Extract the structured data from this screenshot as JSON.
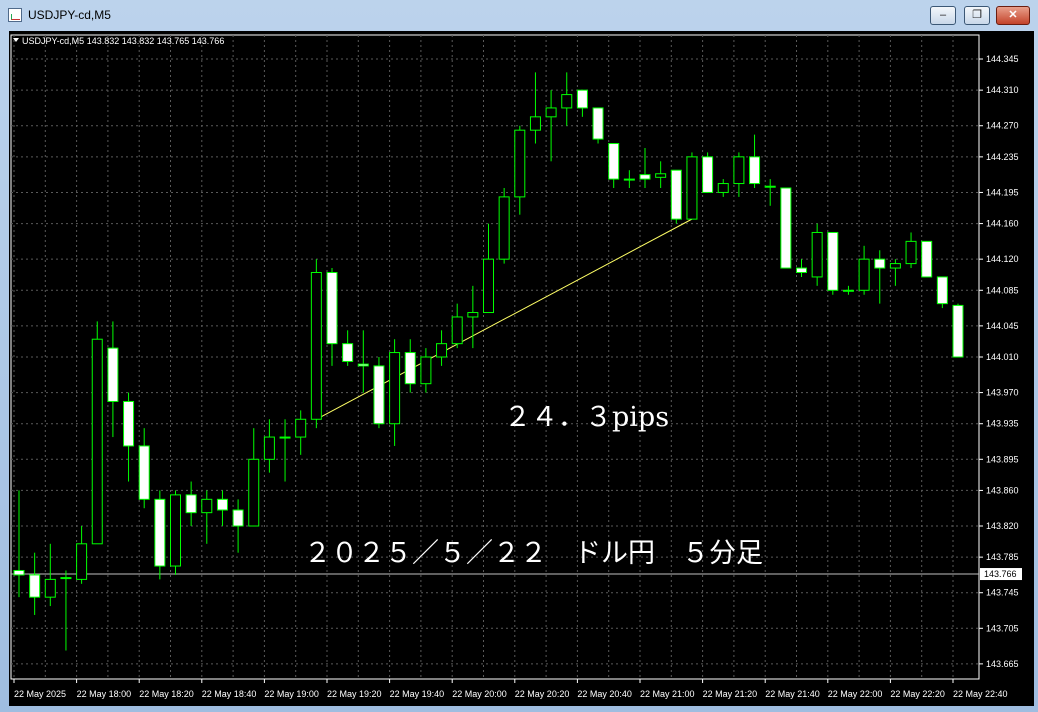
{
  "window": {
    "title": "USDJPY-cd,M5",
    "min_icon": "minimize-icon",
    "max_icon": "restore-icon",
    "close_icon": "close-icon"
  },
  "colors": {
    "background": "#000000",
    "grid": "#5a5a5a",
    "bull_body": "#000000",
    "bear_body": "#ffffff",
    "wick": "#00ff00",
    "text": "#ffffff",
    "trendline": "#ffff66",
    "price_line": "#c0c0c0"
  },
  "chart_data": {
    "type": "candlestick",
    "symbol_info": "USDJPY-cd,M5  143.832 143.832 143.765 143.766",
    "current_price": "143.766",
    "ylim": [
      143.648,
      144.372
    ],
    "grid": true,
    "y_ticks": [
      "144.345",
      "144.310",
      "144.270",
      "144.235",
      "144.195",
      "144.160",
      "144.120",
      "144.085",
      "144.045",
      "144.010",
      "143.970",
      "143.935",
      "143.895",
      "143.860",
      "143.820",
      "143.785",
      "143.745",
      "143.705",
      "143.665"
    ],
    "x_ticks": [
      "22 May 2025",
      "22 May 18:00",
      "22 May 18:20",
      "22 May 18:40",
      "22 May 19:00",
      "22 May 19:20",
      "22 May 19:40",
      "22 May 20:00",
      "22 May 20:20",
      "22 May 20:40",
      "22 May 21:00",
      "22 May 21:20",
      "22 May 21:40",
      "22 May 22:00",
      "22 May 22:20",
      "22 May 22:40"
    ],
    "candles": [
      {
        "o": 143.77,
        "h": 143.86,
        "l": 143.74,
        "c": 143.765
      },
      {
        "o": 143.765,
        "h": 143.79,
        "l": 143.72,
        "c": 143.74
      },
      {
        "o": 143.74,
        "h": 143.8,
        "l": 143.73,
        "c": 143.76
      },
      {
        "o": 143.762,
        "h": 143.77,
        "l": 143.68,
        "c": 143.762
      },
      {
        "o": 143.76,
        "h": 143.82,
        "l": 143.755,
        "c": 143.8
      },
      {
        "o": 143.8,
        "h": 144.05,
        "l": 143.8,
        "c": 144.03
      },
      {
        "o": 144.02,
        "h": 144.05,
        "l": 143.92,
        "c": 143.96
      },
      {
        "o": 143.96,
        "h": 143.97,
        "l": 143.87,
        "c": 143.91
      },
      {
        "o": 143.91,
        "h": 143.93,
        "l": 143.84,
        "c": 143.85
      },
      {
        "o": 143.85,
        "h": 143.86,
        "l": 143.76,
        "c": 143.775
      },
      {
        "o": 143.775,
        "h": 143.86,
        "l": 143.765,
        "c": 143.855
      },
      {
        "o": 143.855,
        "h": 143.87,
        "l": 143.82,
        "c": 143.835
      },
      {
        "o": 143.835,
        "h": 143.86,
        "l": 143.8,
        "c": 143.85
      },
      {
        "o": 143.85,
        "h": 143.86,
        "l": 143.82,
        "c": 143.838
      },
      {
        "o": 143.838,
        "h": 143.85,
        "l": 143.79,
        "c": 143.82
      },
      {
        "o": 143.82,
        "h": 143.93,
        "l": 143.82,
        "c": 143.895
      },
      {
        "o": 143.895,
        "h": 143.94,
        "l": 143.88,
        "c": 143.92
      },
      {
        "o": 143.92,
        "h": 143.94,
        "l": 143.87,
        "c": 143.92
      },
      {
        "o": 143.92,
        "h": 143.95,
        "l": 143.9,
        "c": 143.94
      },
      {
        "o": 143.94,
        "h": 144.12,
        "l": 143.93,
        "c": 144.105
      },
      {
        "o": 144.105,
        "h": 144.11,
        "l": 144.0,
        "c": 144.025
      },
      {
        "o": 144.025,
        "h": 144.04,
        "l": 144.0,
        "c": 144.005
      },
      {
        "o": 144.002,
        "h": 144.04,
        "l": 143.97,
        "c": 144.0
      },
      {
        "o": 144.0,
        "h": 144.01,
        "l": 143.93,
        "c": 143.935
      },
      {
        "o": 143.935,
        "h": 144.03,
        "l": 143.91,
        "c": 144.015
      },
      {
        "o": 144.015,
        "h": 144.03,
        "l": 143.97,
        "c": 143.98
      },
      {
        "o": 143.98,
        "h": 144.02,
        "l": 143.97,
        "c": 144.01
      },
      {
        "o": 144.01,
        "h": 144.04,
        "l": 144.0,
        "c": 144.025
      },
      {
        "o": 144.025,
        "h": 144.07,
        "l": 144.02,
        "c": 144.055
      },
      {
        "o": 144.055,
        "h": 144.09,
        "l": 144.02,
        "c": 144.06
      },
      {
        "o": 144.06,
        "h": 144.16,
        "l": 144.06,
        "c": 144.12
      },
      {
        "o": 144.12,
        "h": 144.2,
        "l": 144.115,
        "c": 144.19
      },
      {
        "o": 144.19,
        "h": 144.27,
        "l": 144.17,
        "c": 144.265
      },
      {
        "o": 144.265,
        "h": 144.33,
        "l": 144.25,
        "c": 144.28
      },
      {
        "o": 144.28,
        "h": 144.31,
        "l": 144.23,
        "c": 144.29
      },
      {
        "o": 144.29,
        "h": 144.33,
        "l": 144.27,
        "c": 144.305
      },
      {
        "o": 144.31,
        "h": 144.31,
        "l": 144.28,
        "c": 144.29
      },
      {
        "o": 144.29,
        "h": 144.29,
        "l": 144.25,
        "c": 144.255
      },
      {
        "o": 144.25,
        "h": 144.25,
        "l": 144.2,
        "c": 144.21
      },
      {
        "o": 144.21,
        "h": 144.22,
        "l": 144.2,
        "c": 144.21
      },
      {
        "o": 144.215,
        "h": 144.245,
        "l": 144.2,
        "c": 144.21
      },
      {
        "o": 144.212,
        "h": 144.23,
        "l": 144.2,
        "c": 144.216
      },
      {
        "o": 144.22,
        "h": 144.22,
        "l": 144.16,
        "c": 144.165
      },
      {
        "o": 144.165,
        "h": 144.24,
        "l": 144.165,
        "c": 144.235
      },
      {
        "o": 144.235,
        "h": 144.24,
        "l": 144.195,
        "c": 144.195
      },
      {
        "o": 144.195,
        "h": 144.21,
        "l": 144.19,
        "c": 144.205
      },
      {
        "o": 144.205,
        "h": 144.24,
        "l": 144.19,
        "c": 144.235
      },
      {
        "o": 144.235,
        "h": 144.26,
        "l": 144.2,
        "c": 144.205
      },
      {
        "o": 144.202,
        "h": 144.21,
        "l": 144.18,
        "c": 144.202
      },
      {
        "o": 144.2,
        "h": 144.2,
        "l": 144.11,
        "c": 144.11
      },
      {
        "o": 144.11,
        "h": 144.12,
        "l": 144.1,
        "c": 144.105
      },
      {
        "o": 144.1,
        "h": 144.16,
        "l": 144.09,
        "c": 144.15
      },
      {
        "o": 144.15,
        "h": 144.15,
        "l": 144.08,
        "c": 144.085
      },
      {
        "o": 144.085,
        "h": 144.09,
        "l": 144.08,
        "c": 144.085
      },
      {
        "o": 144.085,
        "h": 144.135,
        "l": 144.08,
        "c": 144.12
      },
      {
        "o": 144.12,
        "h": 144.13,
        "l": 144.07,
        "c": 144.11
      },
      {
        "o": 144.11,
        "h": 144.12,
        "l": 144.09,
        "c": 144.115
      },
      {
        "o": 144.115,
        "h": 144.15,
        "l": 144.11,
        "c": 144.14
      },
      {
        "o": 144.14,
        "h": 144.14,
        "l": 144.1,
        "c": 144.1
      },
      {
        "o": 144.1,
        "h": 144.1,
        "l": 144.065,
        "c": 144.07
      },
      {
        "o": 144.068,
        "h": 144.07,
        "l": 144.01,
        "c": 144.01
      }
    ],
    "trendline": {
      "from_candle": 19,
      "from_price": 143.94,
      "to_candle": 43,
      "to_price": 144.165
    },
    "annotations": [
      "２４．３pips",
      "２０２５／５／２２　ドル円　５分足"
    ]
  }
}
